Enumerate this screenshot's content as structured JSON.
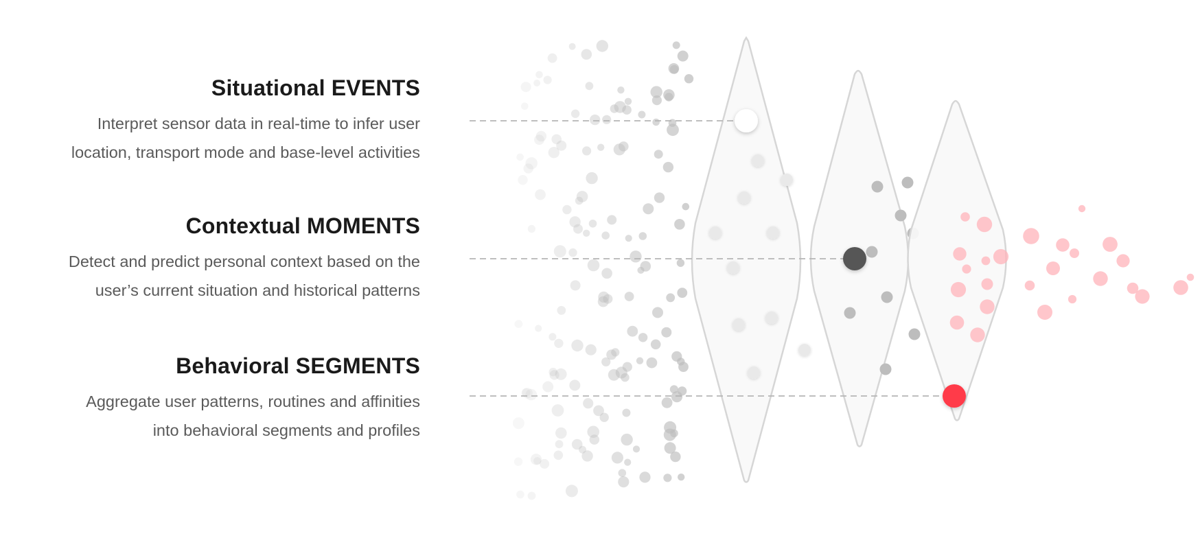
{
  "sections": [
    {
      "title": "Situational EVENTS",
      "line1": "Interpret sensor data in real-time to infer user",
      "line2": "location, transport mode and base-level activities"
    },
    {
      "title": "Contextual MOMENTS",
      "line1": "Detect and predict personal context based on the",
      "line2": "user’s current situation and historical patterns"
    },
    {
      "title": "Behavioral SEGMENTS",
      "line1": "Aggregate user patterns, routines and affinities",
      "line2": "into behavioral segments and profiles"
    }
  ],
  "colors": {
    "title": "#1a1a1a",
    "body": "#5a5a5a",
    "diamond_stroke": "#d6d6d6",
    "diamond_fill": "#f8f8f8",
    "dot_gray": "#bdbdbd",
    "dot_dark": "#575757",
    "accent": "#ff3b4a",
    "accent_light": "#ffc2c7"
  }
}
